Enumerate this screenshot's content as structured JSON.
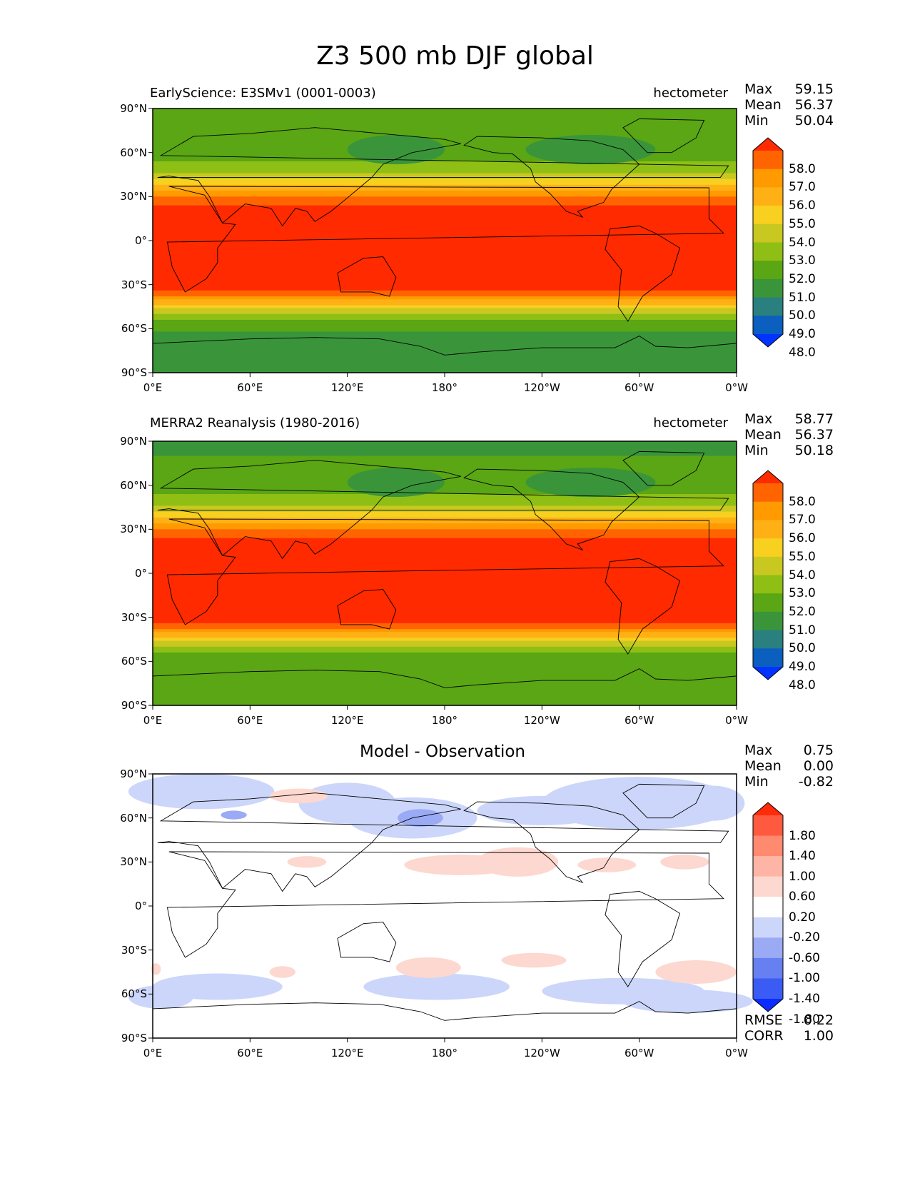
{
  "main_title": "Z3 500 mb DJF global",
  "panels": [
    {
      "title_left": "EarlyScience: E3SMv1 (0001-0003)",
      "title_right": "hectometer",
      "title_center": "",
      "stats": [
        {
          "label": "Max",
          "value": "59.15"
        },
        {
          "label": "Mean",
          "value": "56.37"
        },
        {
          "label": "Min",
          "value": "50.04"
        }
      ],
      "colorbar": {
        "levels": [
          "58.0",
          "57.0",
          "56.0",
          "55.0",
          "54.0",
          "53.0",
          "52.0",
          "51.0",
          "50.0",
          "49.0",
          "48.0"
        ],
        "colors": [
          "#ff2a00",
          "#ff6400",
          "#ff9a00",
          "#ffb015",
          "#f7d020",
          "#c8c820",
          "#8fbf15",
          "#5aa614",
          "#3a953a",
          "#2a7f7f",
          "#0a5fbf",
          "#0033ff"
        ]
      }
    },
    {
      "title_left": "MERRA2 Reanalysis (1980-2016)",
      "title_right": "hectometer",
      "title_center": "",
      "stats": [
        {
          "label": "Max",
          "value": "58.77"
        },
        {
          "label": "Mean",
          "value": "56.37"
        },
        {
          "label": "Min",
          "value": "50.18"
        }
      ],
      "colorbar": {
        "levels": [
          "58.0",
          "57.0",
          "56.0",
          "55.0",
          "54.0",
          "53.0",
          "52.0",
          "51.0",
          "50.0",
          "49.0",
          "48.0"
        ],
        "colors": [
          "#ff2a00",
          "#ff6400",
          "#ff9a00",
          "#ffb015",
          "#f7d020",
          "#c8c820",
          "#8fbf15",
          "#5aa614",
          "#3a953a",
          "#2a7f7f",
          "#0a5fbf",
          "#0033ff"
        ]
      }
    },
    {
      "title_left": "",
      "title_right": "",
      "title_center": "Model - Observation",
      "stats": [
        {
          "label": "Max",
          "value": "0.75"
        },
        {
          "label": "Mean",
          "value": "0.00"
        },
        {
          "label": "Min",
          "value": "-0.82"
        }
      ],
      "bottom_stats": [
        {
          "label": "RMSE",
          "value": "0.22"
        },
        {
          "label": "CORR",
          "value": "1.00"
        }
      ],
      "colorbar": {
        "levels": [
          "1.80",
          "1.40",
          "1.00",
          "0.60",
          "0.20",
          "-0.20",
          "-0.60",
          "-1.00",
          "-1.40",
          "-1.80"
        ],
        "colors": [
          "#ff2a0a",
          "#ff5a40",
          "#ff8a70",
          "#ffb5a5",
          "#fdd8d0",
          "#ffffff",
          "#ccd6fa",
          "#9aaaf5",
          "#6680f2",
          "#3a5cf5",
          "#0a2cff"
        ]
      }
    }
  ],
  "lat_ticks": [
    "90°N",
    "60°N",
    "30°N",
    "0°",
    "30°S",
    "60°S",
    "90°S"
  ],
  "lon_ticks": [
    "0°E",
    "60°E",
    "120°E",
    "180°",
    "120°W",
    "60°W",
    "0°W"
  ]
}
